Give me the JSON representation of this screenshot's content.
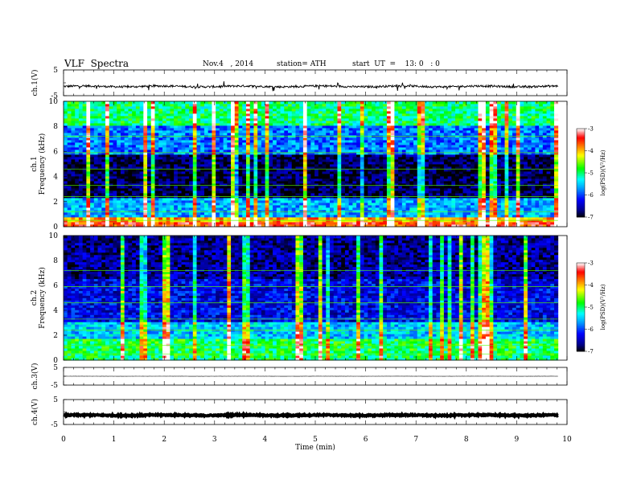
{
  "header": {
    "title": "VLF  Spectra",
    "date": "Nov.4   , 2014",
    "station": "station= ATH",
    "start": "start  UT  =    13: 0   : 0"
  },
  "colors": {
    "waveform": "#000000",
    "colormap": [
      "#000000",
      "#00008b",
      "#0000ff",
      "#00a0ff",
      "#00ffff",
      "#00ff00",
      "#ffff00",
      "#ff8000",
      "#ff0000",
      "#ffffff"
    ]
  },
  "chart_data": [
    {
      "type": "line",
      "panel": "ch1-waveform",
      "ylabel": "ch.1(V)",
      "ylim": [
        -5,
        5
      ],
      "yticks": [
        "5",
        "-5"
      ],
      "level": -1.4,
      "noise_amplitude": 0.4
    },
    {
      "type": "heatmap",
      "panel": "ch1-spectrogram",
      "ylabel": "ch.1\nFrequency  (kHz)",
      "ylim": [
        0,
        10
      ],
      "yticks": [
        "10",
        "8",
        "6",
        "4",
        "2",
        "0"
      ],
      "colorbar": {
        "label": "log(PSD)(V²/Hz)",
        "range": [
          -7,
          -3
        ],
        "ticks": [
          "-3",
          "-4",
          "-5",
          "-6",
          "-7"
        ]
      },
      "bands_khz": [
        {
          "from": 0,
          "to": 0.3,
          "logpsd": -3.5
        },
        {
          "from": 0.3,
          "to": 0.8,
          "logpsd": -3.9
        },
        {
          "from": 0.8,
          "to": 2.3,
          "logpsd": -5.6
        },
        {
          "from": 2.3,
          "to": 5.8,
          "logpsd": -6.8
        },
        {
          "from": 5.8,
          "to": 8.0,
          "logpsd": -5.8
        },
        {
          "from": 8.0,
          "to": 10.0,
          "logpsd": -5.0
        }
      ]
    },
    {
      "type": "heatmap",
      "panel": "ch2-spectrogram",
      "ylabel": "ch.2\nFrequency  (kHz)",
      "ylim": [
        0,
        10
      ],
      "yticks": [
        "10",
        "8",
        "6",
        "4",
        "2",
        "0"
      ],
      "colorbar": {
        "label": "log(PSD)(V²/Hz)",
        "range": [
          -7,
          -3
        ],
        "ticks": [
          "-3",
          "-4",
          "-5",
          "-6",
          "-7"
        ]
      },
      "bands_khz": [
        {
          "from": 0,
          "to": 0.3,
          "logpsd": -5.0
        },
        {
          "from": 0.3,
          "to": 1.8,
          "logpsd": -4.9
        },
        {
          "from": 1.8,
          "to": 3.0,
          "logpsd": -5.5
        },
        {
          "from": 3.0,
          "to": 6.5,
          "logpsd": -6.3
        },
        {
          "from": 6.5,
          "to": 10.0,
          "logpsd": -6.6
        }
      ]
    },
    {
      "type": "line",
      "panel": "ch3-waveform",
      "ylabel": "ch.3(V)",
      "ylim": [
        -5,
        5
      ],
      "yticks": [
        "5",
        "-5"
      ],
      "level": 0,
      "noise_amplitude": 0.05
    },
    {
      "type": "line",
      "panel": "ch4-waveform",
      "ylabel": "ch.4(V)",
      "ylim": [
        -5,
        5
      ],
      "yticks": [
        "5",
        "-5"
      ],
      "level": -1.3,
      "noise_amplitude": 0.25
    }
  ],
  "xaxis": {
    "label": "Time  (min)",
    "xlim": [
      0,
      10
    ],
    "ticks": [
      "0",
      "1",
      "2",
      "3",
      "4",
      "5",
      "6",
      "7",
      "8",
      "9",
      "10"
    ],
    "data_end": 9.82
  }
}
